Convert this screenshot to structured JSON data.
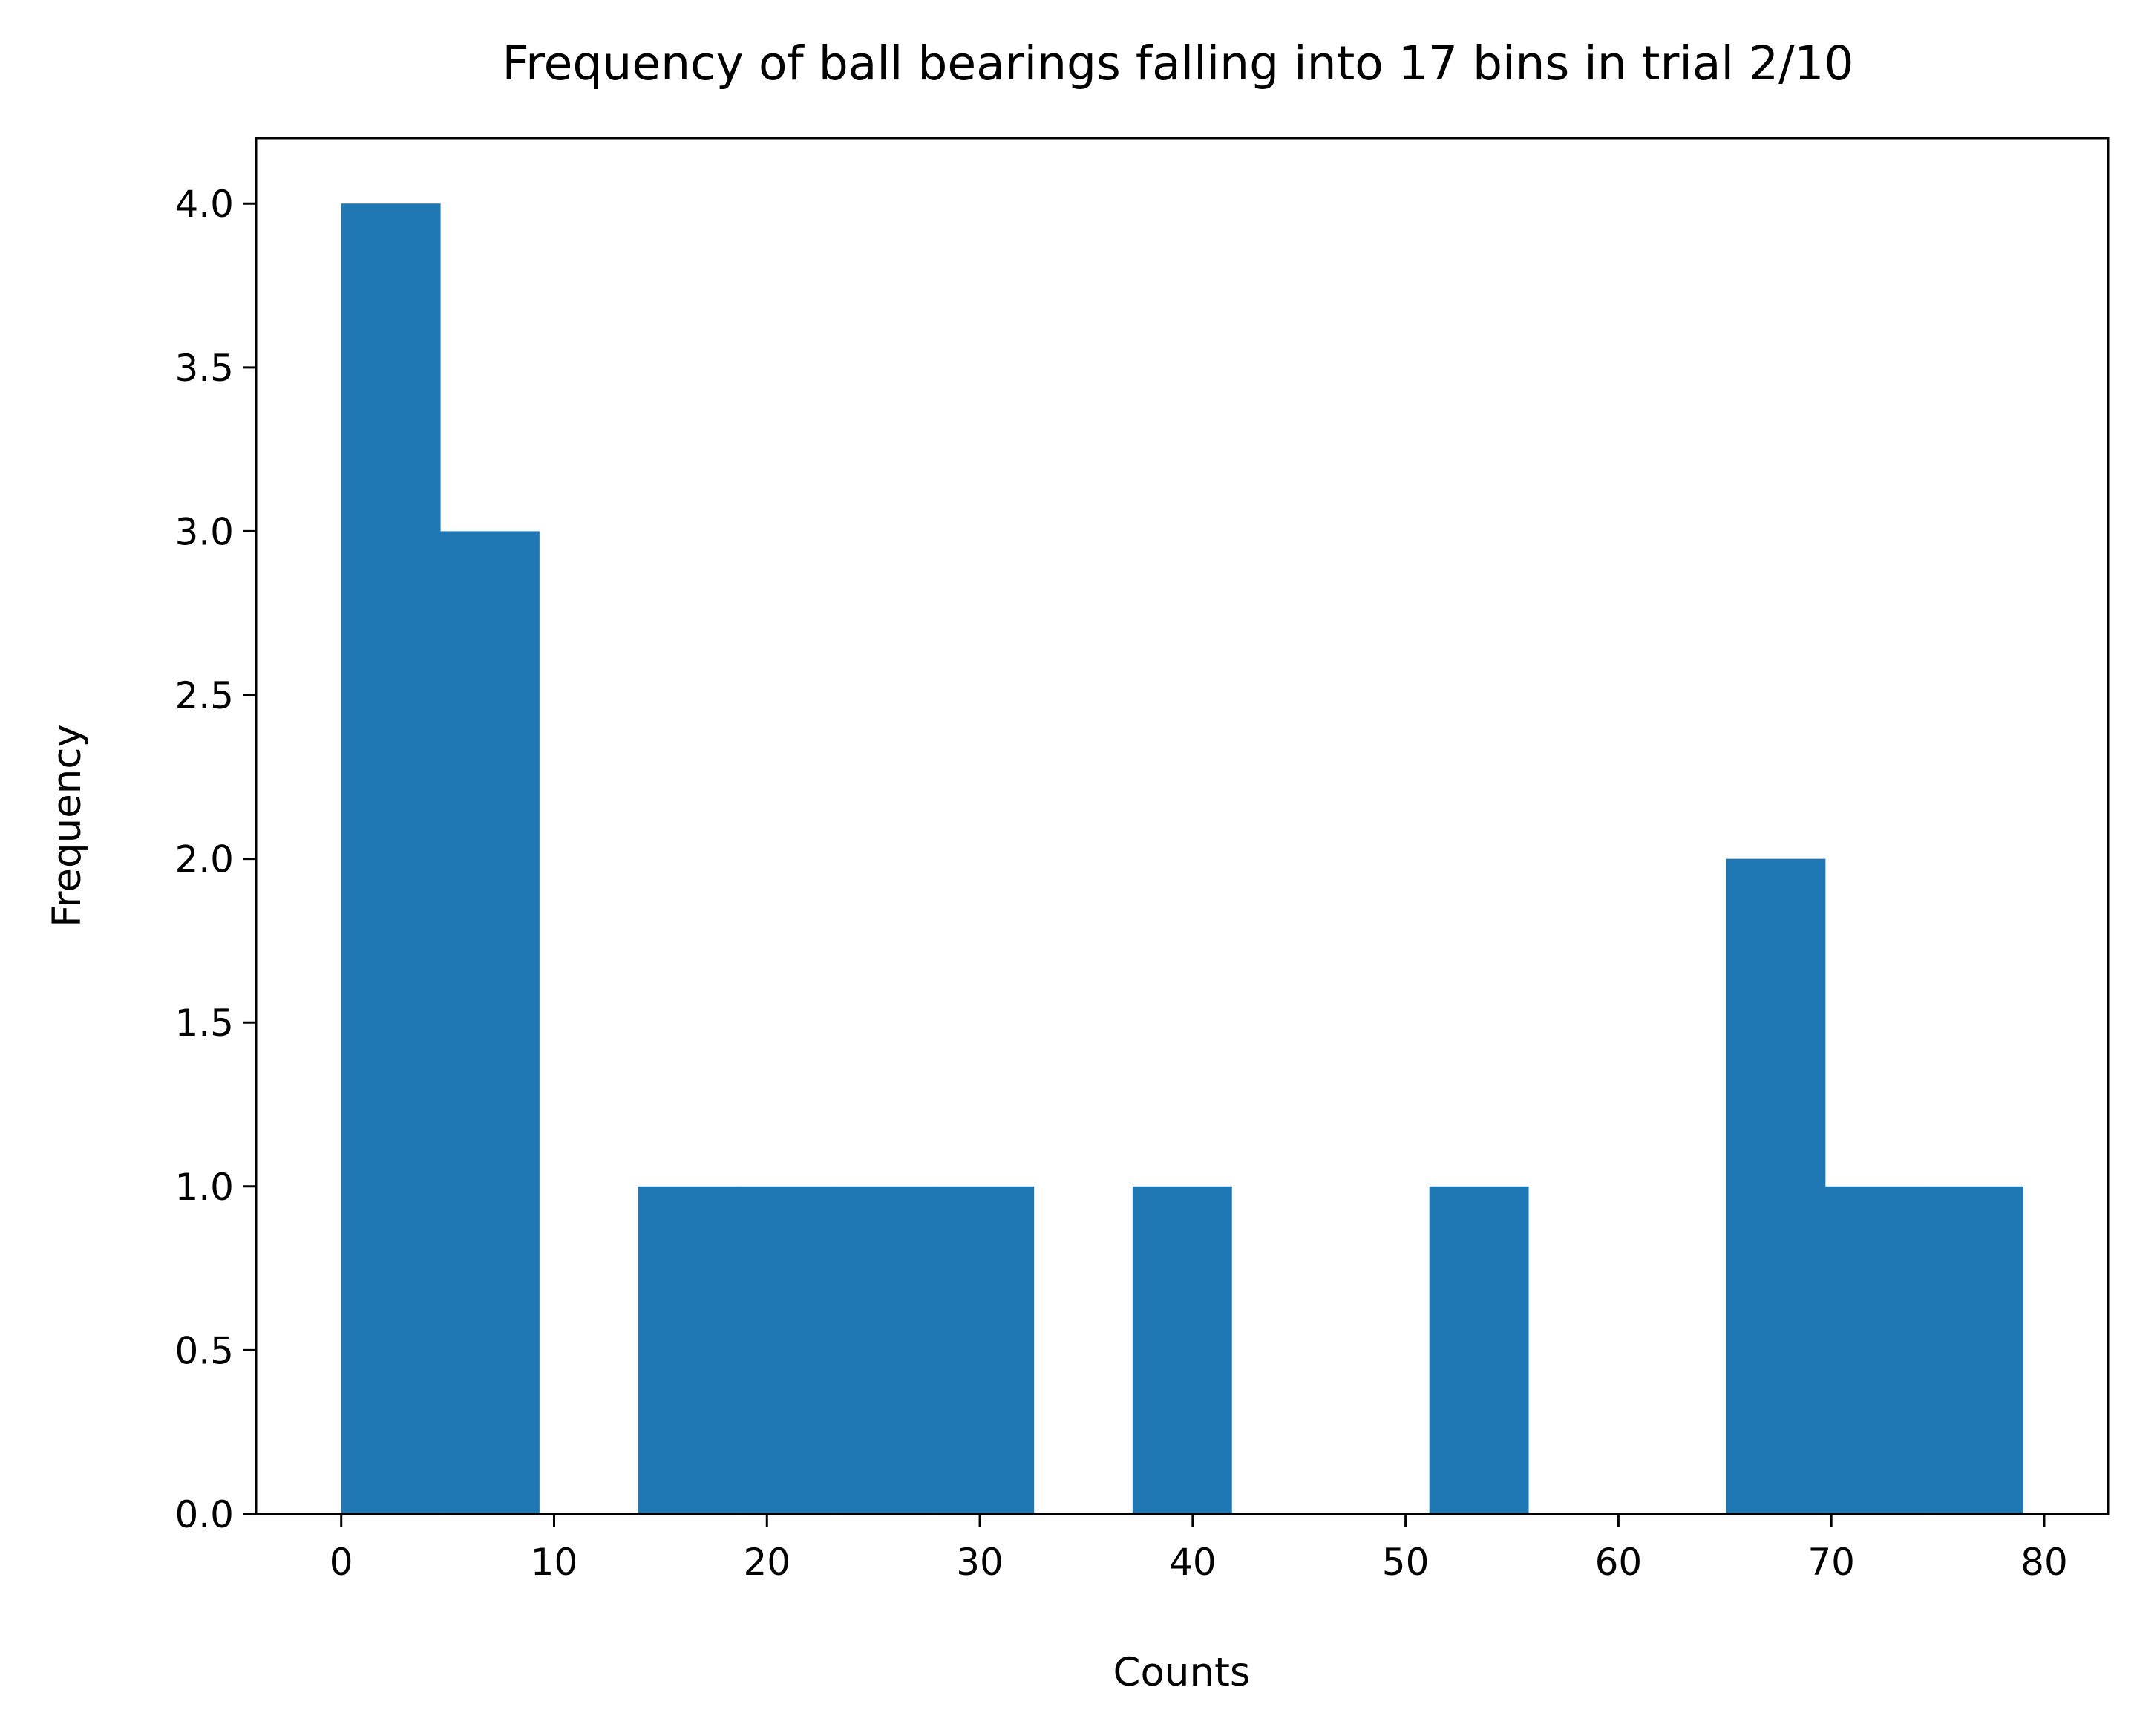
{
  "chart_data": {
    "type": "bar",
    "title": "Frequency of ball bearings falling into 17 bins in trial 2/10",
    "xlabel": "Counts",
    "ylabel": "Frequency",
    "bin_edges": [
      0,
      4.647,
      9.294,
      13.941,
      18.588,
      23.235,
      27.882,
      32.529,
      37.176,
      41.824,
      46.471,
      51.118,
      55.765,
      60.412,
      65.059,
      69.706,
      74.353,
      79
    ],
    "values": [
      4,
      3,
      0,
      1,
      1,
      1,
      1,
      0,
      1,
      0,
      0,
      1,
      0,
      0,
      2,
      1,
      1
    ],
    "xlim": [
      -4,
      83
    ],
    "ylim": [
      0,
      4.2
    ],
    "xticks": [
      0,
      10,
      20,
      30,
      40,
      50,
      60,
      70,
      80
    ],
    "xtick_labels": [
      "0",
      "10",
      "20",
      "30",
      "40",
      "50",
      "60",
      "70",
      "80"
    ],
    "yticks": [
      0,
      0.5,
      1,
      1.5,
      2,
      2.5,
      3,
      3.5,
      4
    ],
    "ytick_labels": [
      "0.0",
      "0.5",
      "1.0",
      "1.5",
      "2.0",
      "2.5",
      "3.0",
      "3.5",
      "4.0"
    ],
    "bar_color": "#1f77b4",
    "grid": false,
    "legend": false
  }
}
